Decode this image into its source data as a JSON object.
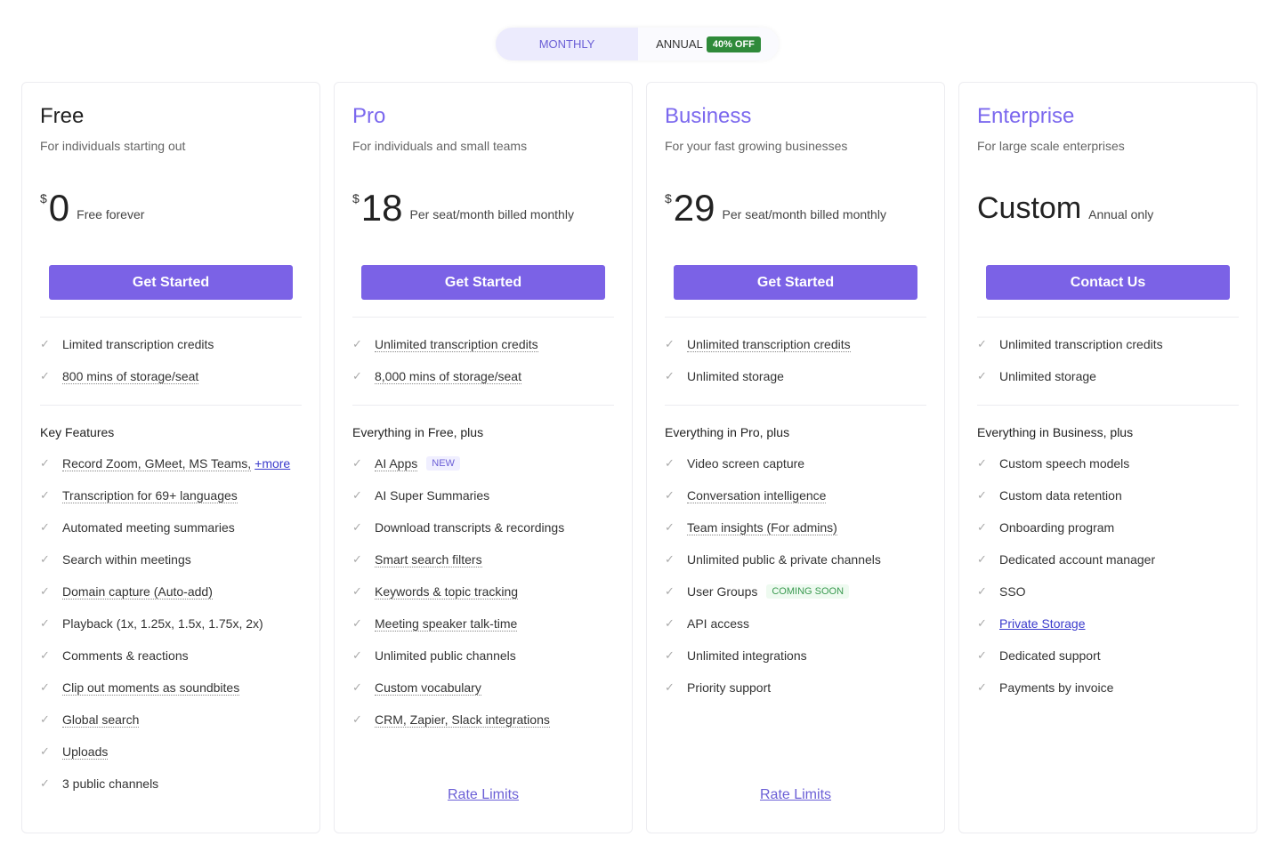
{
  "toggle": {
    "monthly": "MONTHLY",
    "annual": "ANNUAL",
    "discount": "40% OFF"
  },
  "plans": [
    {
      "name": "Free",
      "tagline": "For individuals starting out",
      "currency": "$",
      "price": "0",
      "price_desc": "Free forever",
      "cta": "Get Started",
      "basics": [
        "Limited transcription credits",
        "800 mins of storage/seat"
      ],
      "section": "Key Features",
      "features": [
        "Record Zoom, GMeet, MS Teams,",
        "Transcription for 69+ languages",
        "Automated meeting summaries",
        "Search within meetings",
        "Domain capture (Auto-add)",
        "Playback (1x, 1.25x, 1.5x, 1.75x, 2x)",
        "Comments & reactions",
        "Clip out moments as soundbites",
        "Global search",
        "Uploads",
        "3 public channels"
      ],
      "more_link": "+more"
    },
    {
      "name": "Pro",
      "tagline": "For individuals and small teams",
      "currency": "$",
      "price": "18",
      "price_desc": "Per seat/month billed monthly",
      "cta": "Get Started",
      "basics": [
        "Unlimited transcription credits",
        "8,000 mins of storage/seat"
      ],
      "section": "Everything in Free, plus",
      "features": [
        "AI Apps",
        "AI Super Summaries",
        "Download transcripts & recordings",
        "Smart search filters",
        "Keywords & topic tracking",
        "Meeting speaker talk-time",
        "Unlimited public channels",
        "Custom vocabulary",
        "CRM, Zapier, Slack integrations"
      ],
      "badge": "NEW",
      "rate_limits": "Rate Limits"
    },
    {
      "name": "Business",
      "tagline": "For your fast growing businesses",
      "currency": "$",
      "price": "29",
      "price_desc": "Per seat/month billed monthly",
      "cta": "Get Started",
      "basics": [
        "Unlimited transcription credits",
        "Unlimited storage"
      ],
      "section": "Everything in Pro, plus",
      "features": [
        "Video screen capture",
        "Conversation intelligence",
        "Team insights (For admins)",
        "Unlimited public & private channels",
        "User Groups",
        "API access",
        "Unlimited integrations",
        "Priority support"
      ],
      "badge": "COMING SOON",
      "rate_limits": "Rate Limits"
    },
    {
      "name": "Enterprise",
      "tagline": "For large scale enterprises",
      "price": "Custom",
      "price_desc": "Annual only",
      "cta": "Contact Us",
      "basics": [
        "Unlimited transcription credits",
        "Unlimited storage"
      ],
      "section": "Everything in Business, plus",
      "features": [
        "Custom speech models",
        "Custom data retention",
        "Onboarding program",
        "Dedicated account manager",
        "SSO",
        "Private Storage",
        "Dedicated support",
        "Payments by invoice"
      ]
    }
  ],
  "colors": {
    "accent": "#7b62e6",
    "discount": "#2f8a3a"
  }
}
